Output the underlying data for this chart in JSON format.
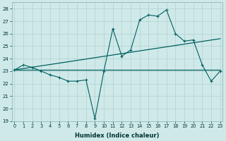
{
  "xlabel": "Humidex (Indice chaleur)",
  "background_color": "#cfe9e9",
  "grid_color": "#b0d0d0",
  "line_color": "#006060",
  "xlim": [
    0,
    23
  ],
  "ylim": [
    19,
    28.5
  ],
  "yticks": [
    19,
    20,
    21,
    22,
    23,
    24,
    25,
    26,
    27,
    28
  ],
  "xticks": [
    0,
    1,
    2,
    3,
    4,
    5,
    6,
    7,
    8,
    9,
    10,
    11,
    12,
    13,
    14,
    15,
    16,
    17,
    18,
    19,
    20,
    21,
    22,
    23
  ],
  "line1_x": [
    0,
    1,
    2,
    3,
    4,
    5,
    6,
    7,
    8,
    9,
    10,
    11,
    12,
    13,
    14,
    15,
    16,
    17,
    18,
    19,
    20,
    21,
    22,
    23
  ],
  "line1_y": [
    23.1,
    23.5,
    23.3,
    23.0,
    22.7,
    22.5,
    22.2,
    22.2,
    22.3,
    19.2,
    23.0,
    26.4,
    24.2,
    24.7,
    27.1,
    27.5,
    27.4,
    27.9,
    26.0,
    25.4,
    25.5,
    23.5,
    22.2,
    23.0
  ],
  "line2_x": [
    0,
    23
  ],
  "line2_y": [
    23.1,
    23.1
  ],
  "line3_x": [
    0,
    23
  ],
  "line3_y": [
    23.1,
    25.6
  ]
}
